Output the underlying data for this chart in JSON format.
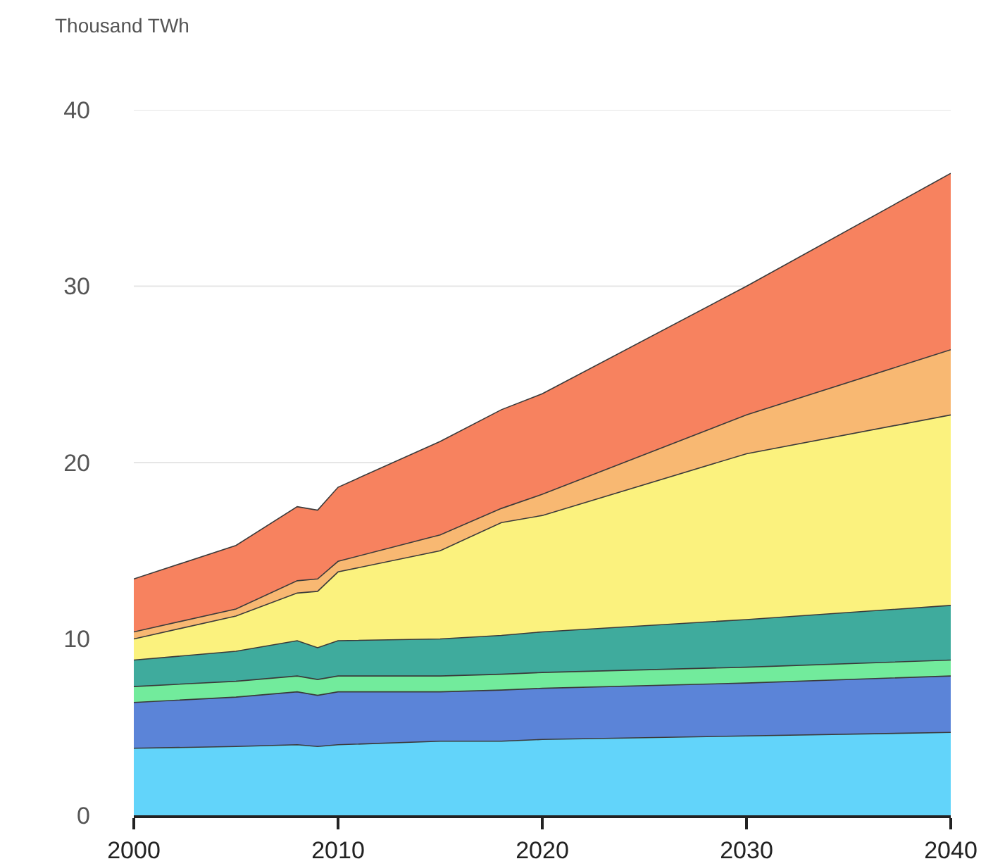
{
  "chart_data": {
    "type": "area",
    "stacked": true,
    "ylabel": "Thousand TWh",
    "x": [
      2000,
      2005,
      2008,
      2009,
      2010,
      2015,
      2018,
      2020,
      2030,
      2040
    ],
    "series": [
      {
        "color": "#62d4fa",
        "values": [
          3.8,
          3.9,
          4.0,
          3.9,
          4.0,
          4.2,
          4.2,
          4.3,
          4.5,
          4.7
        ]
      },
      {
        "color": "#5b84d8",
        "values": [
          2.6,
          2.8,
          3.0,
          2.9,
          3.0,
          2.8,
          2.9,
          2.9,
          3.0,
          3.2
        ]
      },
      {
        "color": "#72eb9c",
        "values": [
          0.9,
          0.9,
          0.9,
          0.9,
          0.9,
          0.9,
          0.9,
          0.9,
          0.9,
          0.9
        ]
      },
      {
        "color": "#3fab9d",
        "values": [
          1.5,
          1.7,
          2.0,
          1.8,
          2.0,
          2.1,
          2.2,
          2.3,
          2.7,
          3.1
        ]
      },
      {
        "color": "#fbf27e",
        "values": [
          1.2,
          2.0,
          2.7,
          3.2,
          3.9,
          5.0,
          6.4,
          6.6,
          9.4,
          10.8
        ]
      },
      {
        "color": "#f8b872",
        "values": [
          0.4,
          0.4,
          0.7,
          0.7,
          0.6,
          0.9,
          0.8,
          1.2,
          2.2,
          3.7
        ]
      },
      {
        "color": "#f7825f",
        "values": [
          3.0,
          3.6,
          4.2,
          3.9,
          4.2,
          5.3,
          5.6,
          5.7,
          7.3,
          10.0
        ]
      }
    ],
    "xlim": [
      2000,
      2040
    ],
    "xticks": [
      2000,
      2010,
      2020,
      2030,
      2040
    ],
    "ylim": [
      0,
      40
    ],
    "yticks": [
      0,
      10,
      20,
      30,
      40
    ],
    "grid": "y"
  }
}
